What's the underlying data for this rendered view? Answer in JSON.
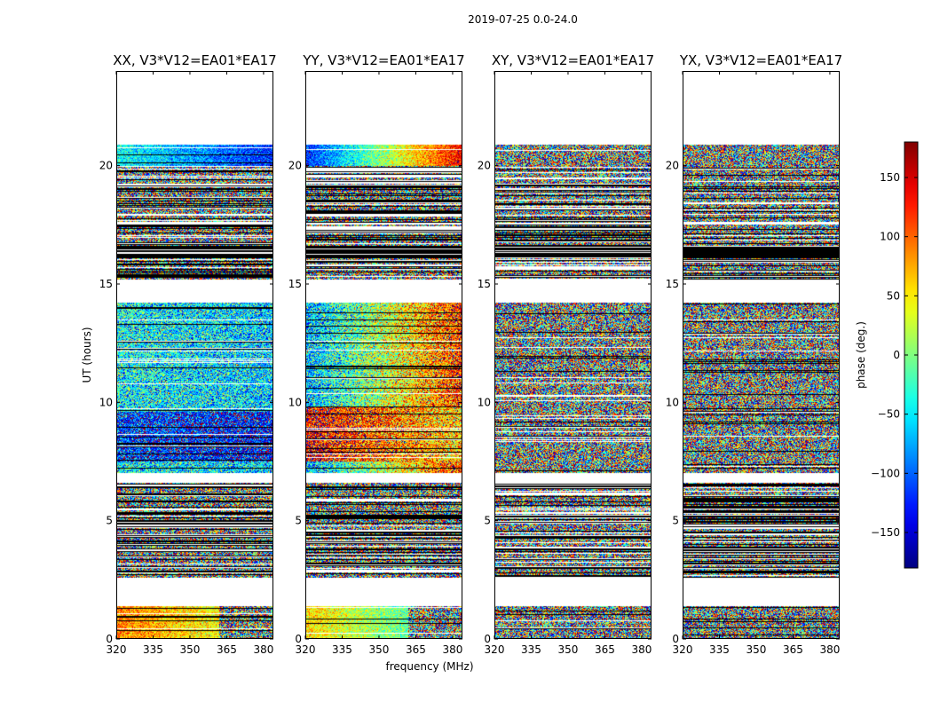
{
  "suptitle": "2019-07-25 0.0-24.0",
  "chart_data": {
    "type": "heatmap",
    "title": "2019-07-25 0.0-24.0",
    "xlabel": "frequency (MHz)",
    "ylabel": "UT (hours)",
    "xlim": [
      320,
      384
    ],
    "ylim": [
      0,
      24
    ],
    "xticks": [
      320,
      335,
      350,
      365,
      380
    ],
    "yticks": [
      0,
      5,
      10,
      15,
      20
    ],
    "panels": [
      {
        "title": "XX, V3*V12=EA01*EA17",
        "pol": "XX"
      },
      {
        "title": "YY, V3*V12=EA01*EA17",
        "pol": "YY"
      },
      {
        "title": "XY, V3*V12=EA01*EA17",
        "pol": "XY"
      },
      {
        "title": "YX, V3*V12=EA01*EA17",
        "pol": "YX"
      }
    ],
    "colorbar": {
      "label": "phase (deg.)",
      "colormap": "jet",
      "range": [
        -180,
        180
      ],
      "ticks": [
        150,
        100,
        50,
        0,
        -50,
        -100,
        -150
      ],
      "tick_labels": [
        "150",
        "100",
        "50",
        "0",
        "−50",
        "−100",
        "−150"
      ]
    },
    "data_time_ranges_hours": [
      [
        0.0,
        1.4
      ],
      [
        2.6,
        6.6
      ],
      [
        7.0,
        14.2
      ],
      [
        15.2,
        17.5
      ],
      [
        17.6,
        20.9
      ]
    ],
    "missing_ranges_hours": [
      [
        1.4,
        2.6
      ],
      [
        6.6,
        7.0
      ],
      [
        14.2,
        15.2
      ],
      [
        20.9,
        24.0
      ]
    ],
    "flagged_ranges_hours": [
      [
        16.1,
        16.6
      ]
    ]
  }
}
